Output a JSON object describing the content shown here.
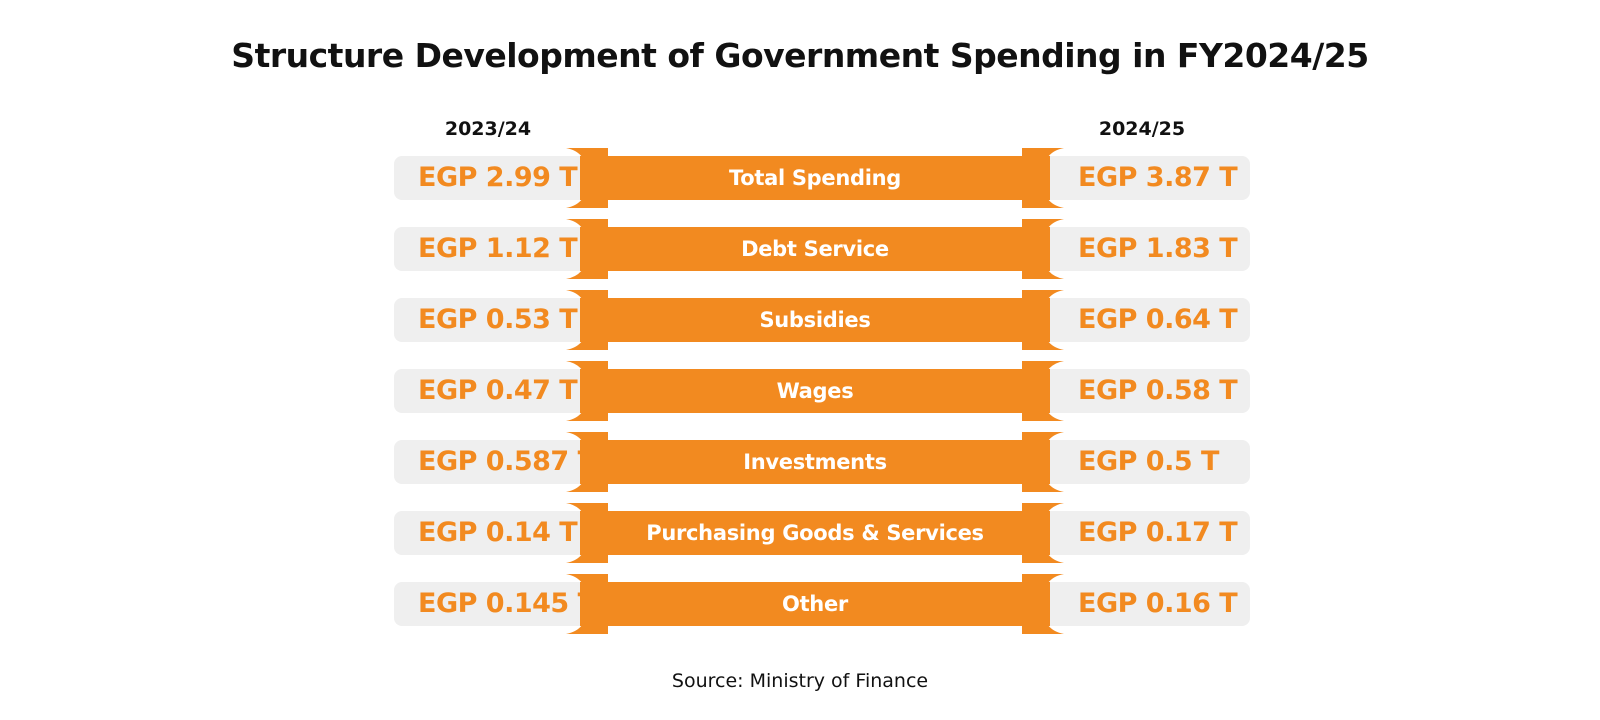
{
  "chart_data": {
    "type": "table",
    "title": "Structure Development of Government Spending in FY2024/25",
    "columns": [
      "2023/24",
      "2024/25"
    ],
    "rows": [
      {
        "category": "Total Spending",
        "values": [
          "EGP 2.99 T",
          "EGP 3.87 T"
        ]
      },
      {
        "category": "Debt Service",
        "values": [
          "EGP 1.12 T",
          "EGP 1.83 T"
        ]
      },
      {
        "category": "Subsidies",
        "values": [
          "EGP 0.53 T",
          "EGP 0.64 T"
        ]
      },
      {
        "category": "Wages",
        "values": [
          "EGP 0.47 T",
          "EGP 0.58 T"
        ]
      },
      {
        "category": "Investments",
        "values": [
          "EGP 0.587 T",
          "EGP 0.5 T"
        ]
      },
      {
        "category": "Purchasing Goods & Services",
        "values": [
          "EGP 0.14 T",
          "EGP 0.17 T"
        ]
      },
      {
        "category": "Other",
        "values": [
          "EGP 0.145 T",
          "EGP 0.16 T"
        ]
      }
    ],
    "numeric_values_trillion_egp": {
      "2023/24": [
        2.99,
        1.12,
        0.53,
        0.47,
        0.587,
        0.14,
        0.145
      ],
      "2024/25": [
        3.87,
        1.83,
        0.64,
        0.58,
        0.5,
        0.17,
        0.16
      ]
    },
    "source": "Source: Ministry of Finance"
  },
  "colors": {
    "accent": "#f28a20",
    "pill": "#efefef",
    "text": "#111111"
  }
}
